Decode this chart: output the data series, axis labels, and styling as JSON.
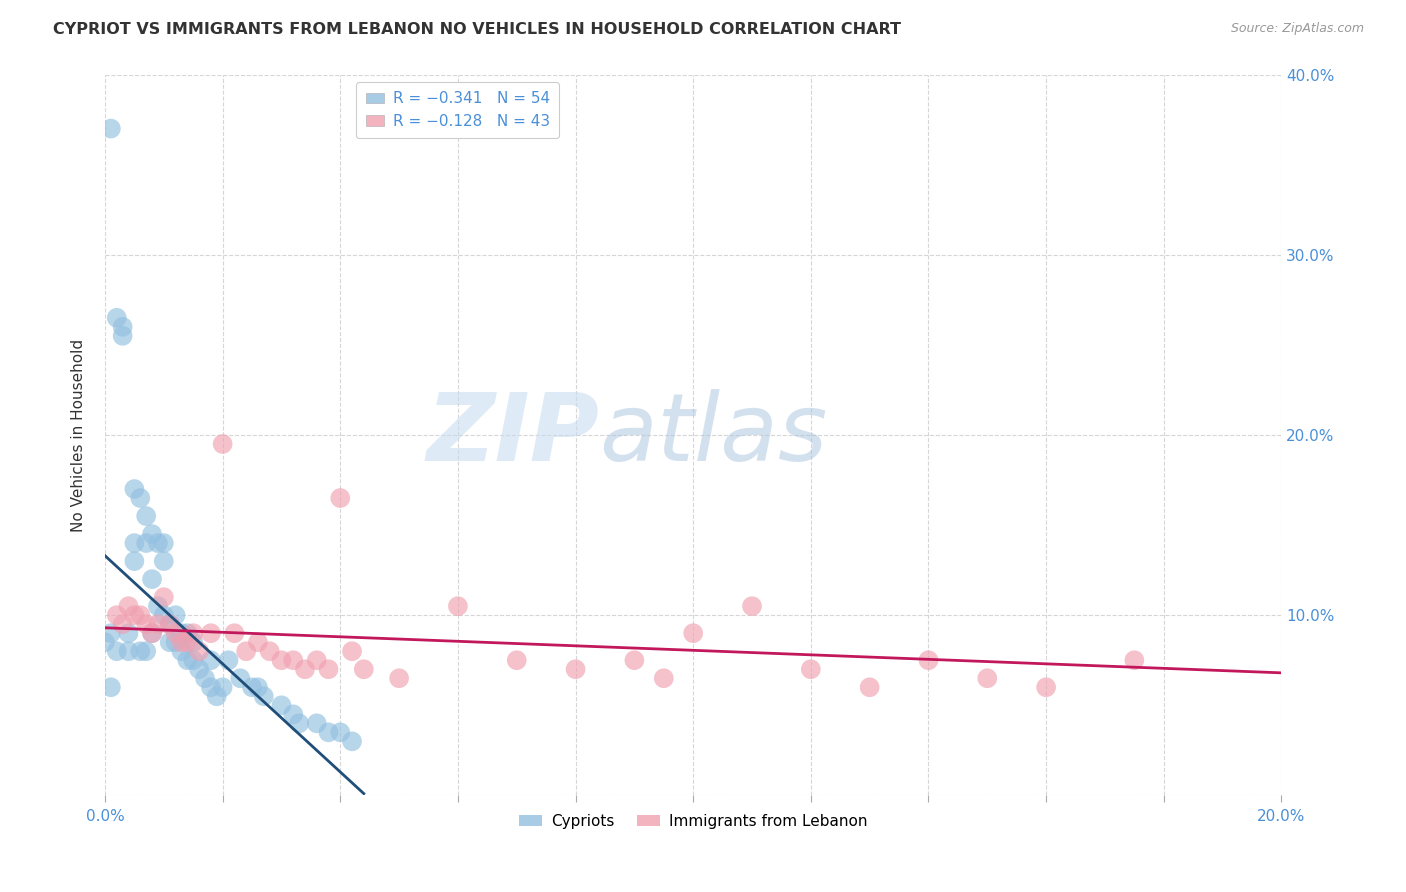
{
  "title": "CYPRIOT VS IMMIGRANTS FROM LEBANON NO VEHICLES IN HOUSEHOLD CORRELATION CHART",
  "source": "Source: ZipAtlas.com",
  "ylabel": "No Vehicles in Household",
  "xlim": [
    0.0,
    0.2
  ],
  "ylim": [
    0.0,
    0.4
  ],
  "cypriot_color": "#92c0e0",
  "lebanon_color": "#f0a0b0",
  "cypriot_line_color": "#1f4e79",
  "lebanon_line_color": "#c2185b",
  "watermark_zip": "ZIP",
  "watermark_atlas": "atlas",
  "background_color": "#ffffff",
  "grid_color": "#cccccc",
  "cypriot_x": [
    0.001,
    0.001,
    0.002,
    0.002,
    0.003,
    0.003,
    0.004,
    0.004,
    0.005,
    0.005,
    0.005,
    0.006,
    0.006,
    0.007,
    0.007,
    0.007,
    0.008,
    0.008,
    0.008,
    0.009,
    0.009,
    0.01,
    0.01,
    0.01,
    0.011,
    0.011,
    0.012,
    0.012,
    0.013,
    0.013,
    0.014,
    0.014,
    0.015,
    0.015,
    0.016,
    0.017,
    0.018,
    0.018,
    0.019,
    0.02,
    0.021,
    0.023,
    0.025,
    0.026,
    0.027,
    0.03,
    0.032,
    0.033,
    0.036,
    0.038,
    0.04,
    0.042,
    0.0,
    0.001
  ],
  "cypriot_y": [
    0.37,
    0.09,
    0.265,
    0.08,
    0.26,
    0.255,
    0.09,
    0.08,
    0.17,
    0.14,
    0.13,
    0.165,
    0.08,
    0.155,
    0.14,
    0.08,
    0.145,
    0.12,
    0.09,
    0.14,
    0.105,
    0.14,
    0.13,
    0.1,
    0.095,
    0.085,
    0.1,
    0.085,
    0.09,
    0.08,
    0.09,
    0.075,
    0.085,
    0.075,
    0.07,
    0.065,
    0.075,
    0.06,
    0.055,
    0.06,
    0.075,
    0.065,
    0.06,
    0.06,
    0.055,
    0.05,
    0.045,
    0.04,
    0.04,
    0.035,
    0.035,
    0.03,
    0.085,
    0.06
  ],
  "lebanon_x": [
    0.002,
    0.003,
    0.004,
    0.005,
    0.006,
    0.007,
    0.008,
    0.009,
    0.01,
    0.011,
    0.012,
    0.013,
    0.014,
    0.015,
    0.016,
    0.018,
    0.02,
    0.022,
    0.024,
    0.026,
    0.028,
    0.03,
    0.032,
    0.034,
    0.036,
    0.038,
    0.04,
    0.042,
    0.044,
    0.05,
    0.06,
    0.07,
    0.08,
    0.09,
    0.095,
    0.1,
    0.11,
    0.12,
    0.13,
    0.14,
    0.15,
    0.16,
    0.175
  ],
  "lebanon_y": [
    0.1,
    0.095,
    0.105,
    0.1,
    0.1,
    0.095,
    0.09,
    0.095,
    0.11,
    0.095,
    0.09,
    0.085,
    0.085,
    0.09,
    0.08,
    0.09,
    0.195,
    0.09,
    0.08,
    0.085,
    0.08,
    0.075,
    0.075,
    0.07,
    0.075,
    0.07,
    0.165,
    0.08,
    0.07,
    0.065,
    0.105,
    0.075,
    0.07,
    0.075,
    0.065,
    0.09,
    0.105,
    0.07,
    0.06,
    0.075,
    0.065,
    0.06,
    0.075
  ],
  "cyp_line_x0": 0.0,
  "cyp_line_y0": 0.133,
  "cyp_line_x1": 0.044,
  "cyp_line_y1": 0.001,
  "leb_line_x0": 0.0,
  "leb_line_y0": 0.093,
  "leb_line_x1": 0.2,
  "leb_line_y1": 0.068
}
